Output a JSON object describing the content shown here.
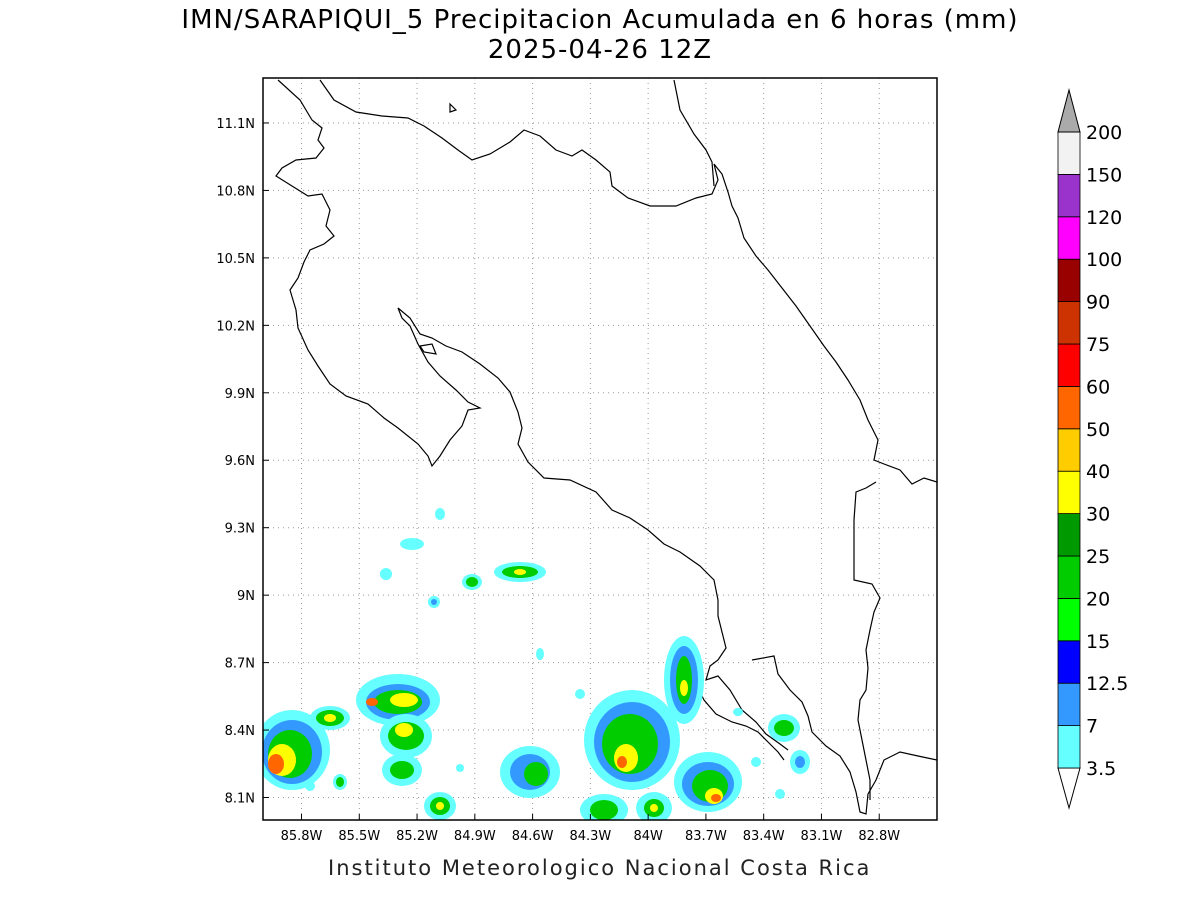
{
  "title": "IMN/SARAPIQUI_5 Precipitacion Acumulada en 6 horas (mm)",
  "subtitle": "2025-04-26 12Z",
  "footer": "Instituto Meteorologico Nacional Costa Rica",
  "map": {
    "lon_range": [
      -86.0,
      -82.5
    ],
    "lat_range": [
      8.0,
      11.3
    ],
    "lon_ticks": [
      "85.8W",
      "85.5W",
      "85.2W",
      "84.9W",
      "84.6W",
      "84.3W",
      "84W",
      "83.7W",
      "83.4W",
      "83.1W",
      "82.8W"
    ],
    "lat_ticks": [
      "11.1N",
      "10.8N",
      "10.5N",
      "10.2N",
      "9.9N",
      "9.6N",
      "9.3N",
      "9N",
      "8.7N",
      "8.4N",
      "8.1N"
    ],
    "grid": "dotted"
  },
  "colorbar": {
    "labels": [
      "3.5",
      "7",
      "12.5",
      "15",
      "20",
      "25",
      "30",
      "40",
      "50",
      "60",
      "75",
      "90",
      "100",
      "120",
      "150",
      "200"
    ],
    "colors": [
      "#66ffff",
      "#3399ff",
      "#0000ff",
      "#00ff00",
      "#00cc00",
      "#009900",
      "#ffff00",
      "#ffcc00",
      "#ff6600",
      "#ff0000",
      "#cc3300",
      "#990000",
      "#ff00ff",
      "#9933cc",
      "#f2f2f2",
      "#aaaaaa"
    ]
  }
}
